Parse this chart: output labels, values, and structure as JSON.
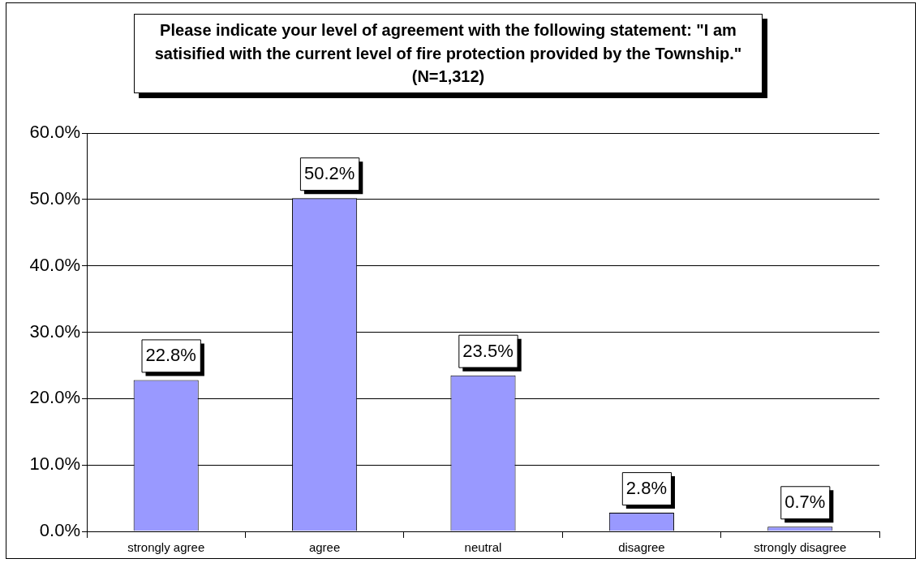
{
  "chart_data": {
    "type": "bar",
    "title": "Please indicate your level of agreement with the following statement: \"I am satisified with the current level of fire protection provided by the Township.\" (N=1,312)",
    "categories": [
      "strongly agree",
      "agree",
      "neutral",
      "disagree",
      "strongly disagree"
    ],
    "values": [
      22.8,
      50.2,
      23.5,
      2.8,
      0.7
    ],
    "color": "#9999ff",
    "value_labels": [
      "22.8%",
      "50.2%",
      "23.5%",
      "2.8%",
      "0.7%"
    ],
    "ylim": [
      0,
      60
    ],
    "yticks": [
      {
        "value": 0,
        "label": "0.0%"
      },
      {
        "value": 10,
        "label": "10.0%"
      },
      {
        "value": 20,
        "label": "20.0%"
      },
      {
        "value": 30,
        "label": "30.0%"
      },
      {
        "value": 40,
        "label": "40.0%"
      },
      {
        "value": 50,
        "label": "50.0%"
      },
      {
        "value": 60,
        "label": "60.0%"
      }
    ],
    "grid": "y"
  }
}
